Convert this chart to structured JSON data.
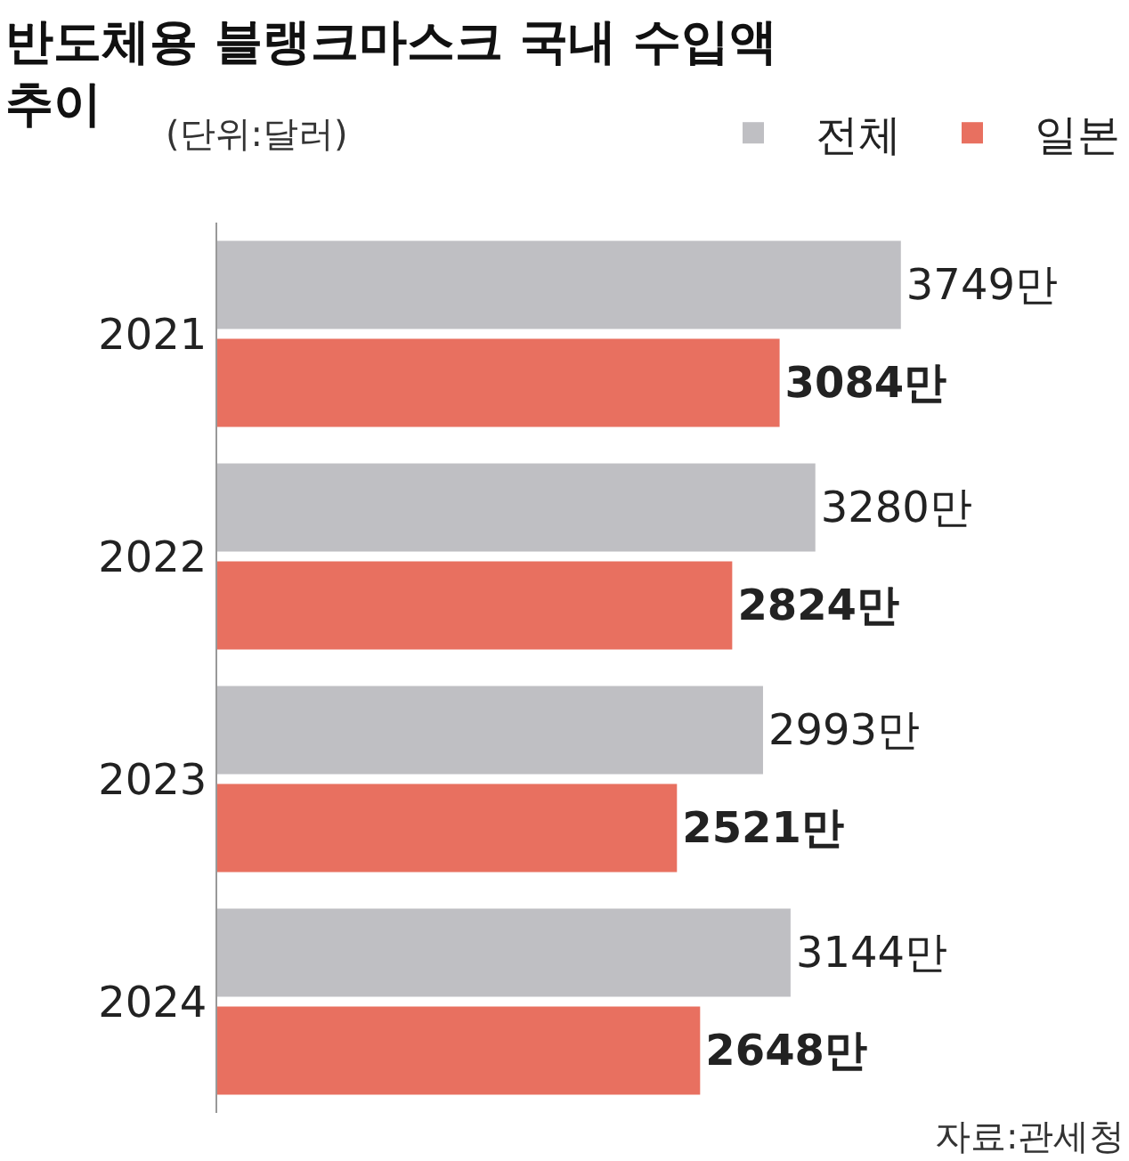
{
  "chart_data": {
    "type": "bar",
    "orientation": "horizontal",
    "title": "반도체용 블랭크마스크 국내 수입액\n추이",
    "subtitle": "(단위:달러)",
    "annotations": [
      "자료:관세청"
    ],
    "categories": [
      "2021",
      "2022",
      "2023",
      "2024"
    ],
    "series": [
      {
        "name": "전체",
        "color": "#bfbfc3",
        "values": [
          3749,
          3280,
          2993,
          3144
        ],
        "value_labels": [
          "3749만",
          "3280만",
          "2993만",
          "3144만"
        ]
      },
      {
        "name": "일본",
        "color": "#e87060",
        "values": [
          3084,
          2824,
          2521,
          2648
        ],
        "value_labels": [
          "3084만",
          "2824만",
          "2521만",
          "2648만"
        ]
      }
    ],
    "xlim": [
      0,
      5000
    ],
    "tick_labels": "y",
    "grid": false,
    "legend": "top right"
  }
}
